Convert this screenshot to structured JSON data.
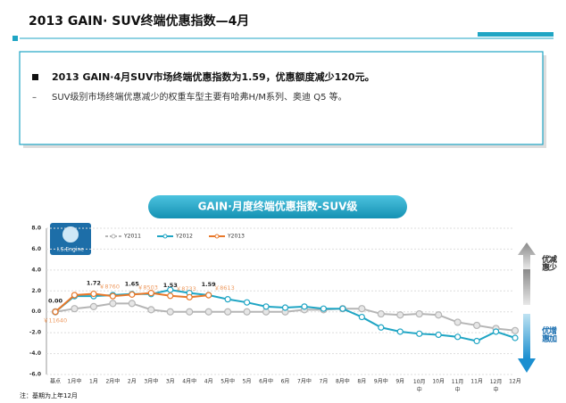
{
  "header": {
    "title": "2013 GAIN· SUV终端优惠指数—4月"
  },
  "summary": {
    "bullet": "2013 GAIN·4月SUV市场终端优惠指数为1.59，优惠额度减少120元。",
    "detail": "SUV级别市场终端优惠减少的权重车型主要有哈弗H/M系列、奥迪 Q5 等。"
  },
  "chart_data": {
    "type": "line",
    "title": "GAIN·月度终端优惠指数-SUV级",
    "logo_text": "I.S.Engine",
    "categories": [
      "基点",
      "1月中",
      "1月",
      "2月中",
      "2月",
      "3月中",
      "3月",
      "4月中",
      "4月",
      "5月中",
      "5月",
      "6月中",
      "6月",
      "7月中",
      "7月",
      "8月中",
      "8月",
      "9月中",
      "9月",
      "10月中",
      "10月",
      "11月中",
      "11月",
      "12月中",
      "12月"
    ],
    "series": [
      {
        "name": "Y2011",
        "color": "#b5b5b5",
        "values": [
          0,
          0.3,
          0.5,
          0.8,
          0.8,
          0.2,
          0,
          0,
          0,
          0,
          0,
          0,
          0,
          0.2,
          0.2,
          0.3,
          0.3,
          -0.2,
          -0.3,
          -0.2,
          -0.3,
          -1.0,
          -1.3,
          -1.6,
          -1.8
        ]
      },
      {
        "name": "Y2012",
        "color": "#1fa5c4",
        "values": [
          0,
          1.5,
          1.5,
          1.6,
          1.7,
          1.7,
          2.1,
          1.8,
          1.6,
          1.2,
          0.9,
          0.5,
          0.4,
          0.5,
          0.3,
          0.3,
          -0.5,
          -1.5,
          -1.9,
          -2.1,
          -2.2,
          -2.4,
          -2.8,
          -1.9,
          -2.5
        ]
      },
      {
        "name": "Y2013",
        "color": "#e8782a",
        "values": [
          0,
          1.6,
          1.72,
          1.5,
          1.65,
          1.8,
          1.53,
          1.4,
          1.59,
          null,
          null,
          null,
          null,
          null,
          null,
          null,
          null,
          null,
          null,
          null,
          null,
          null,
          null,
          null,
          null
        ],
        "value_labels": [
          "0.00",
          null,
          "1.72",
          null,
          "1.65",
          null,
          "1.53",
          null,
          "1.59",
          null,
          null,
          null,
          null,
          null,
          null,
          null,
          null,
          null,
          null,
          null,
          null,
          null,
          null,
          null,
          null
        ],
        "price_labels": [
          "￥11640",
          null,
          "￥8760",
          null,
          "￥8503",
          null,
          "￥8733",
          null,
          "￥8613",
          null,
          null,
          null,
          null,
          null,
          null,
          null,
          null,
          null,
          null,
          null,
          null,
          null,
          null,
          null,
          null
        ]
      }
    ],
    "ylim": [
      -6,
      8
    ],
    "yticks": [
      {
        "value": -6,
        "label": "-6.0"
      },
      {
        "value": -4,
        "label": "-4.0"
      },
      {
        "value": -2,
        "label": "-2.0"
      },
      {
        "value": 0,
        "label": "0.0"
      },
      {
        "value": 2,
        "label": "2.0"
      },
      {
        "value": 4,
        "label": "4.0"
      },
      {
        "value": 6,
        "label": "6.0"
      },
      {
        "value": 8,
        "label": "8.0"
      }
    ],
    "grid": true,
    "legend": "top",
    "up_label": "优惠减少",
    "down_label": "优惠增加",
    "note": "注：基期为上年12月"
  }
}
